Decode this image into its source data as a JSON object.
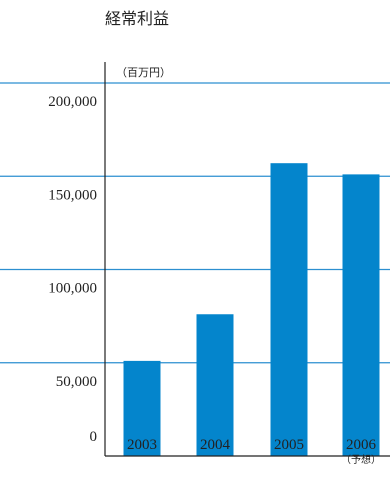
{
  "chart_data": {
    "type": "bar",
    "title": "経常利益",
    "unit_label": "（百万円）",
    "categories": [
      "2003",
      "2004",
      "2005",
      "2006"
    ],
    "category_notes": [
      "",
      "",
      "",
      "（予想）"
    ],
    "values": [
      51000,
      76000,
      157000,
      151000
    ],
    "ylim": [
      0,
      200000
    ],
    "yticks": [
      "0",
      "50,000",
      "100,000",
      "150,000",
      "200,000"
    ],
    "ytick_values": [
      0,
      50000,
      100000,
      150000,
      200000
    ],
    "grid": true,
    "bar_color": "#0485cc",
    "grid_color": "#2c8fd0",
    "axis_color": "#222222"
  }
}
